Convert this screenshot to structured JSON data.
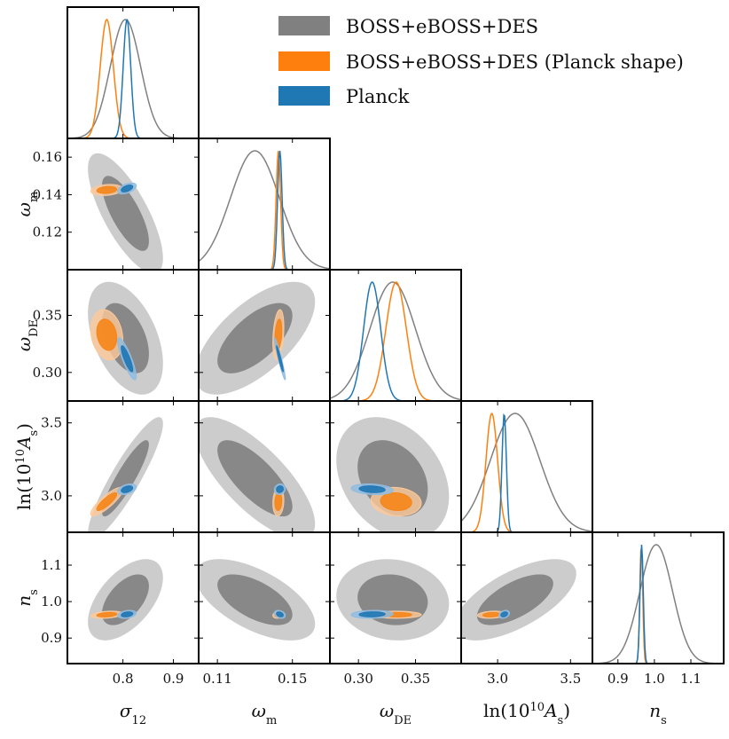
{
  "chart_data": {
    "type": "corner",
    "parameters": [
      {
        "key": "s12",
        "label_main": "σ",
        "label_sub": "12",
        "range": [
          0.69,
          0.95
        ],
        "ticks": [
          0.8,
          0.9
        ],
        "tick_labels": [
          "0.8",
          "0.9"
        ]
      },
      {
        "key": "om",
        "label_main": "ω",
        "label_sub": "m",
        "range": [
          0.1,
          0.17
        ],
        "ticks": [
          0.11,
          0.15
        ],
        "tick_labels": [
          "0.11",
          "0.15"
        ],
        "yticks": [
          0.12,
          0.14,
          0.16
        ],
        "ytick_labels": [
          "0.12",
          "0.14",
          "0.16"
        ]
      },
      {
        "key": "ode",
        "label_main": "ω",
        "label_sub": "DE",
        "range": [
          0.275,
          0.39
        ],
        "ticks": [
          0.3,
          0.35
        ],
        "tick_labels": [
          "0.30",
          "0.35"
        ],
        "yticks": [
          0.3,
          0.35
        ],
        "ytick_labels": [
          "0.30",
          "0.35"
        ]
      },
      {
        "key": "lnA",
        "label_main": "ln(10",
        "label_sup": "10",
        "label_main2": "A",
        "label_sub": "s",
        "label_close": ")",
        "range": [
          2.75,
          3.65
        ],
        "ticks": [
          3.0,
          3.5
        ],
        "tick_labels": [
          "3.0",
          "3.5"
        ],
        "yticks": [
          3.0,
          3.5
        ],
        "ytick_labels": [
          "3.0",
          "3.5"
        ]
      },
      {
        "key": "ns",
        "label_main": "n",
        "label_sub": "s",
        "range": [
          0.83,
          1.19
        ],
        "ticks": [
          0.9,
          1.0,
          1.1
        ],
        "tick_labels": [
          "0.9",
          "1.0",
          "1.1"
        ],
        "yticks": [
          0.9,
          1.0,
          1.1
        ],
        "ytick_labels": [
          "0.9",
          "1.0",
          "1.1"
        ]
      }
    ],
    "series": [
      {
        "name": "BOSS+eBOSS+DES",
        "color_fill_outer": "#cccccc",
        "color_fill_inner": "#888888",
        "color_line": "#808080",
        "mean": [
          0.805,
          0.13,
          0.33,
          3.12,
          1.005
        ],
        "sigma": [
          0.03,
          0.013,
          0.02,
          0.17,
          0.045
        ],
        "corr": [
          [
            1,
            -0.75,
            -0.45,
            0.9,
            0.55
          ],
          [
            -0.75,
            1,
            0.65,
            -0.75,
            -0.6
          ],
          [
            -0.45,
            0.65,
            1,
            -0.3,
            -0.1
          ],
          [
            0.9,
            -0.75,
            -0.3,
            1,
            0.65
          ],
          [
            0.55,
            -0.6,
            -0.1,
            0.65,
            1
          ]
        ]
      },
      {
        "name": "BOSS+eBOSS+DES (Planck shape)",
        "color_fill_outer": "#fdc99a",
        "color_fill_inner": "#f58518",
        "color_line": "#ff7f0e",
        "mean": [
          0.768,
          0.1425,
          0.333,
          2.96,
          0.964
        ],
        "sigma": [
          0.013,
          0.0012,
          0.009,
          0.04,
          0.004
        ],
        "corr": [
          [
            1,
            0.2,
            -0.2,
            0.85,
            0.3
          ],
          [
            0.2,
            1,
            0.3,
            0.1,
            0.2
          ],
          [
            -0.2,
            0.3,
            1,
            -0.1,
            0.0
          ],
          [
            0.85,
            0.1,
            -0.1,
            1,
            0.2
          ],
          [
            0.3,
            0.2,
            0.0,
            0.2,
            1
          ]
        ]
      },
      {
        "name": "Planck",
        "color_fill_outer": "#8fbbe2",
        "color_fill_inner": "#1f77b4",
        "color_line": "#1f77b4",
        "mean": [
          0.808,
          0.1433,
          0.312,
          3.045,
          0.965
        ],
        "sigma": [
          0.0075,
          0.0012,
          0.0075,
          0.015,
          0.0045
        ],
        "corr": [
          [
            1,
            0.5,
            -0.85,
            0.4,
            0.3
          ],
          [
            0.5,
            1,
            -0.95,
            0.1,
            -0.3
          ],
          [
            -0.85,
            -0.95,
            1,
            -0.2,
            0.1
          ],
          [
            0.4,
            0.1,
            -0.2,
            1,
            0.3
          ],
          [
            0.3,
            -0.3,
            0.1,
            0.3,
            1
          ]
        ]
      }
    ],
    "legend": {
      "placement": "top-right",
      "entries": [
        "BOSS+eBOSS+DES",
        "BOSS+eBOSS+DES (Planck shape)",
        "Planck"
      ]
    }
  }
}
